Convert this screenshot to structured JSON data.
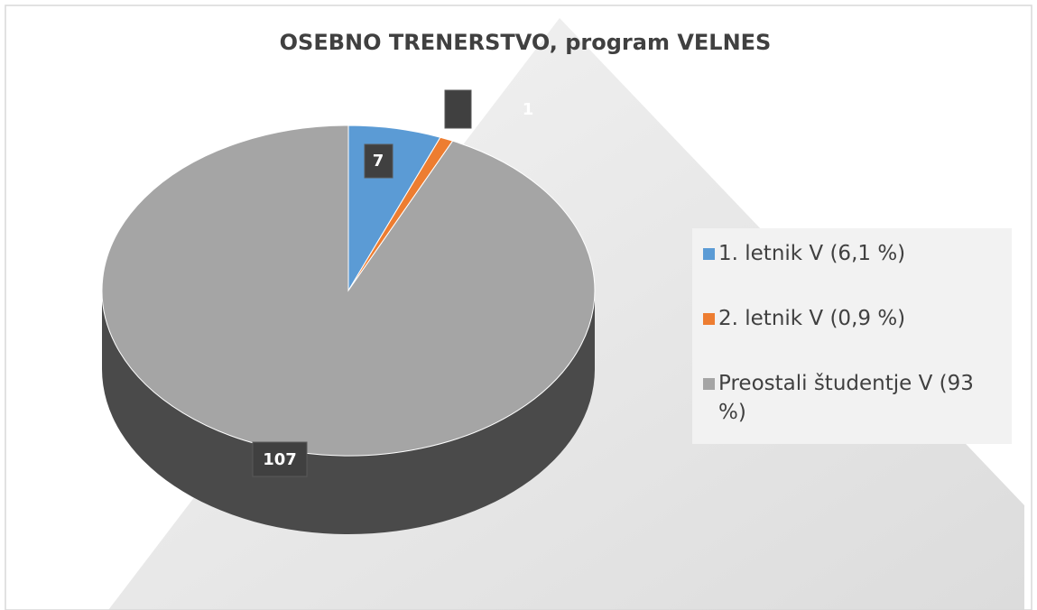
{
  "chart_data": {
    "type": "pie",
    "title": "OSEBNO TRENERSTVO, program VELNES",
    "categories": [
      "1. letnik V (6,1 %)",
      "2. letnik V (0,9 %)",
      "Preostali študentje V (93 %)"
    ],
    "values": [
      7,
      1,
      107
    ],
    "colors": [
      "#5b9bd5",
      "#ed7d31",
      "#a5a5a5"
    ]
  }
}
